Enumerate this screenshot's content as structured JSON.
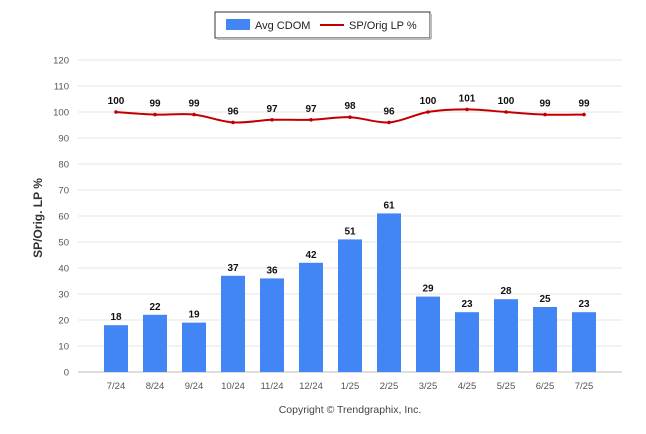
{
  "chart_data": {
    "type": "bar",
    "categories": [
      "7/24",
      "8/24",
      "9/24",
      "10/24",
      "11/24",
      "12/24",
      "1/25",
      "2/25",
      "3/25",
      "4/25",
      "5/25",
      "6/25",
      "7/25"
    ],
    "series": [
      {
        "name": "Avg CDOM",
        "type": "bar",
        "color": "#4285f4",
        "values": [
          18,
          22,
          19,
          37,
          36,
          42,
          51,
          61,
          29,
          23,
          28,
          25,
          23
        ]
      },
      {
        "name": "SP/Orig LP %",
        "type": "line",
        "color": "#c00000",
        "values": [
          100,
          99,
          99,
          96,
          97,
          97,
          98,
          96,
          100,
          101,
          100,
          99,
          99
        ]
      }
    ],
    "ylabel": "SP/Orig. LP %",
    "ylim": [
      0,
      120
    ],
    "yticks": [
      0,
      10,
      20,
      30,
      40,
      50,
      60,
      70,
      80,
      90,
      100,
      110,
      120
    ],
    "grid": true,
    "legend_position": "top-center"
  },
  "legend": {
    "bar_label": "Avg CDOM",
    "line_label": "SP/Orig LP %"
  },
  "footer": {
    "copyright": "Copyright © Trendgraphix, Inc."
  }
}
